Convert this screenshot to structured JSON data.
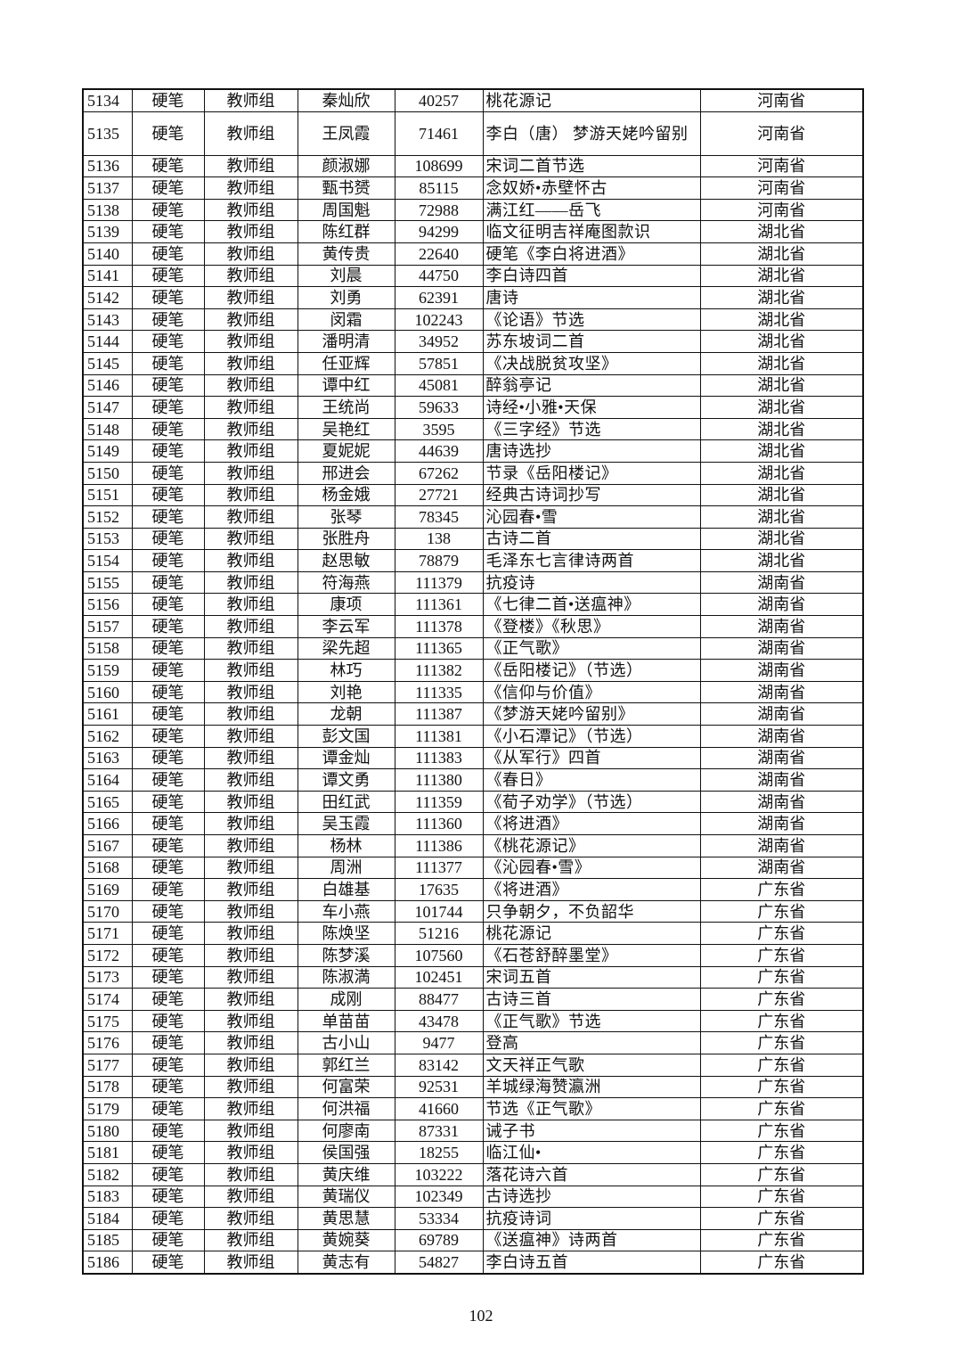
{
  "table": {
    "rows": [
      [
        "5134",
        "硬笔",
        "教师组",
        "秦灿欣",
        "40257",
        "桃花源记",
        "河南省"
      ],
      [
        "5135",
        "硬笔",
        "教师组",
        "王凤霞",
        "71461",
        "李白（唐） 梦游天姥吟留别",
        "河南省"
      ],
      [
        "5136",
        "硬笔",
        "教师组",
        "颜淑娜",
        "108699",
        "宋词二首节选",
        "河南省"
      ],
      [
        "5137",
        "硬笔",
        "教师组",
        "甄书赟",
        "85115",
        "念奴娇•赤壁怀古",
        "河南省"
      ],
      [
        "5138",
        "硬笔",
        "教师组",
        "周国魁",
        "72988",
        "满江红——岳飞",
        "河南省"
      ],
      [
        "5139",
        "硬笔",
        "教师组",
        "陈红群",
        "94299",
        "临文征明吉祥庵图款识",
        "湖北省"
      ],
      [
        "5140",
        "硬笔",
        "教师组",
        "黄传贵",
        "22640",
        "硬笔《李白将进酒》",
        "湖北省"
      ],
      [
        "5141",
        "硬笔",
        "教师组",
        "刘晨",
        "44750",
        "李白诗四首",
        "湖北省"
      ],
      [
        "5142",
        "硬笔",
        "教师组",
        "刘勇",
        "62391",
        "唐诗",
        "湖北省"
      ],
      [
        "5143",
        "硬笔",
        "教师组",
        "闵霜",
        "102243",
        "《论语》节选",
        "湖北省"
      ],
      [
        "5144",
        "硬笔",
        "教师组",
        "潘明清",
        "34952",
        "苏东坡词二首",
        "湖北省"
      ],
      [
        "5145",
        "硬笔",
        "教师组",
        "任亚辉",
        "57851",
        "《决战脱贫攻坚》",
        "湖北省"
      ],
      [
        "5146",
        "硬笔",
        "教师组",
        "谭中红",
        "45081",
        "醉翁亭记",
        "湖北省"
      ],
      [
        "5147",
        "硬笔",
        "教师组",
        "王统尚",
        "59633",
        "诗经•小雅•天保",
        "湖北省"
      ],
      [
        "5148",
        "硬笔",
        "教师组",
        "吴艳红",
        "3595",
        "《三字经》节选",
        "湖北省"
      ],
      [
        "5149",
        "硬笔",
        "教师组",
        "夏妮妮",
        "44639",
        "唐诗选抄",
        "湖北省"
      ],
      [
        "5150",
        "硬笔",
        "教师组",
        "邢进会",
        "67262",
        "节录《岳阳楼记》",
        "湖北省"
      ],
      [
        "5151",
        "硬笔",
        "教师组",
        "杨金娥",
        "27721",
        "经典古诗词抄写",
        "湖北省"
      ],
      [
        "5152",
        "硬笔",
        "教师组",
        "张琴",
        "78345",
        "沁园春•雪",
        "湖北省"
      ],
      [
        "5153",
        "硬笔",
        "教师组",
        "张胜舟",
        "138",
        "古诗二首",
        "湖北省"
      ],
      [
        "5154",
        "硬笔",
        "教师组",
        "赵思敏",
        "78879",
        "毛泽东七言律诗两首",
        "湖北省"
      ],
      [
        "5155",
        "硬笔",
        "教师组",
        "符海燕",
        "111379",
        "抗疫诗",
        "湖南省"
      ],
      [
        "5156",
        "硬笔",
        "教师组",
        "康项",
        "111361",
        "《七律二首•送瘟神》",
        "湖南省"
      ],
      [
        "5157",
        "硬笔",
        "教师组",
        "李云军",
        "111378",
        "《登楼》《秋思》",
        "湖南省"
      ],
      [
        "5158",
        "硬笔",
        "教师组",
        "梁先超",
        "111365",
        "《正气歌》",
        "湖南省"
      ],
      [
        "5159",
        "硬笔",
        "教师组",
        "林巧",
        "111382",
        "《岳阳楼记》（节选）",
        "湖南省"
      ],
      [
        "5160",
        "硬笔",
        "教师组",
        "刘艳",
        "111335",
        "《信仰与价值》",
        "湖南省"
      ],
      [
        "5161",
        "硬笔",
        "教师组",
        "龙朝",
        "111387",
        "《梦游天姥吟留别》",
        "湖南省"
      ],
      [
        "5162",
        "硬笔",
        "教师组",
        "彭文国",
        "111381",
        "《小石潭记》（节选）",
        "湖南省"
      ],
      [
        "5163",
        "硬笔",
        "教师组",
        "谭金灿",
        "111383",
        "《从军行》四首",
        "湖南省"
      ],
      [
        "5164",
        "硬笔",
        "教师组",
        "谭文勇",
        "111380",
        "《春日》",
        "湖南省"
      ],
      [
        "5165",
        "硬笔",
        "教师组",
        "田红武",
        "111359",
        "《荀子劝学》（节选）",
        "湖南省"
      ],
      [
        "5166",
        "硬笔",
        "教师组",
        "吴玉霞",
        "111360",
        "《将进酒》",
        "湖南省"
      ],
      [
        "5167",
        "硬笔",
        "教师组",
        "杨林",
        "111386",
        "《桃花源记》",
        "湖南省"
      ],
      [
        "5168",
        "硬笔",
        "教师组",
        "周洲",
        "111377",
        "《沁园春•雪》",
        "湖南省"
      ],
      [
        "5169",
        "硬笔",
        "教师组",
        "白雄基",
        "17635",
        "《将进酒》",
        "广东省"
      ],
      [
        "5170",
        "硬笔",
        "教师组",
        "车小燕",
        "101744",
        "只争朝夕，不负韶华",
        "广东省"
      ],
      [
        "5171",
        "硬笔",
        "教师组",
        "陈焕坚",
        "51216",
        "桃花源记",
        "广东省"
      ],
      [
        "5172",
        "硬笔",
        "教师组",
        "陈梦溪",
        "107560",
        "《石苍舒醉墨堂》",
        "广东省"
      ],
      [
        "5173",
        "硬笔",
        "教师组",
        "陈淑満",
        "102451",
        "宋词五首",
        "广东省"
      ],
      [
        "5174",
        "硬笔",
        "教师组",
        "成刚",
        "88477",
        "古诗三首",
        "广东省"
      ],
      [
        "5175",
        "硬笔",
        "教师组",
        "单苗苗",
        "43478",
        "《正气歌》节选",
        "广东省"
      ],
      [
        "5176",
        "硬笔",
        "教师组",
        "古小山",
        "9477",
        "登高",
        "广东省"
      ],
      [
        "5177",
        "硬笔",
        "教师组",
        "郭红兰",
        "83142",
        "文天祥正气歌",
        "广东省"
      ],
      [
        "5178",
        "硬笔",
        "教师组",
        "何富荣",
        "92531",
        "羊城绿海赞瀛洲",
        "广东省"
      ],
      [
        "5179",
        "硬笔",
        "教师组",
        "何洪福",
        "41660",
        "节选《正气歌》",
        "广东省"
      ],
      [
        "5180",
        "硬笔",
        "教师组",
        "何廖南",
        "87331",
        "诫子书",
        "广东省"
      ],
      [
        "5181",
        "硬笔",
        "教师组",
        "侯国强",
        "18255",
        "临江仙•",
        "广东省"
      ],
      [
        "5182",
        "硬笔",
        "教师组",
        "黄庆维",
        "103222",
        "落花诗六首",
        "广东省"
      ],
      [
        "5183",
        "硬笔",
        "教师组",
        "黄瑞仪",
        "102349",
        "古诗选抄",
        "广东省"
      ],
      [
        "5184",
        "硬笔",
        "教师组",
        "黄思慧",
        "53334",
        "抗疫诗词",
        "广东省"
      ],
      [
        "5185",
        "硬笔",
        "教师组",
        "黄婉葵",
        "69789",
        "《送瘟神》诗两首",
        "广东省"
      ],
      [
        "5186",
        "硬笔",
        "教师组",
        "黄志有",
        "54827",
        "李白诗五首",
        "广东省"
      ]
    ]
  },
  "footer": {
    "page_number": "102"
  }
}
